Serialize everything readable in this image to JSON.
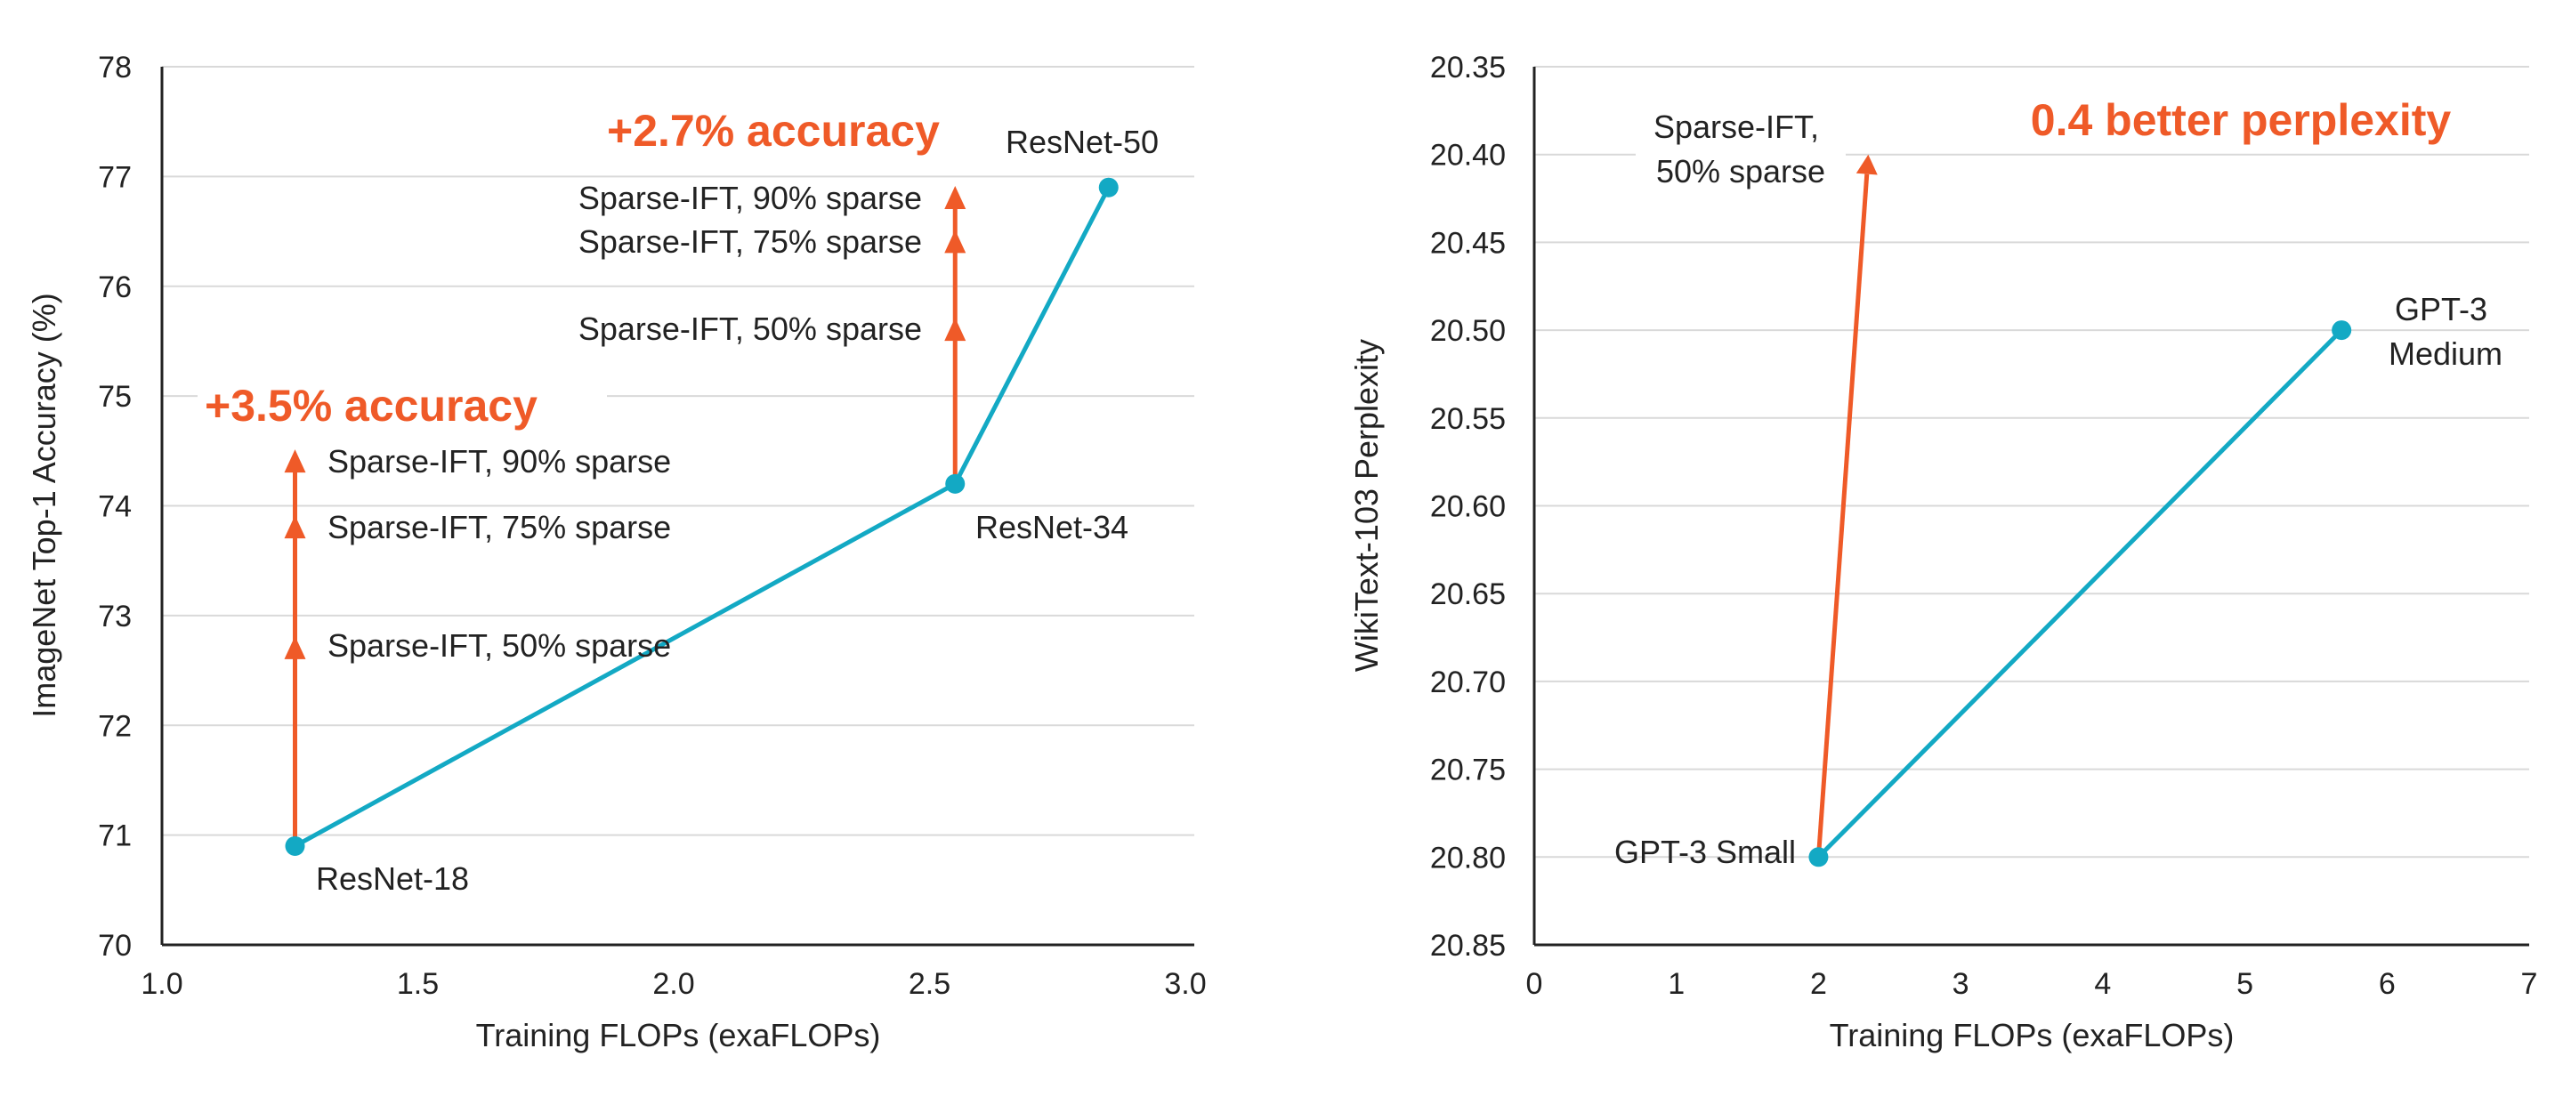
{
  "chart_data": [
    {
      "type": "line",
      "xlabel": "Training FLOPs (exaFLOPs)",
      "ylabel": "ImageNet Top-1 Accuracy (%)",
      "xlim": [
        1.0,
        3.0
      ],
      "ylim": [
        70,
        78
      ],
      "x_ticks": [
        "1.0",
        "1.5",
        "2.0",
        "2.5",
        "3.0"
      ],
      "y_ticks": [
        "70",
        "71",
        "72",
        "73",
        "74",
        "75",
        "76",
        "77",
        "78"
      ],
      "grid": "horizontal",
      "colors": {
        "baseline": "#13a9c4",
        "sparse": "#ef5a28",
        "highlight": "#ef5a28"
      },
      "series": [
        {
          "name": "",
          "points": [
            {
              "x": 1.26,
              "y": 70.9,
              "label": "ResNet-18"
            },
            {
              "x": 2.55,
              "y": 74.2,
              "label": "ResNet-34"
            },
            {
              "x": 2.85,
              "y": 76.9,
              "label": "ResNet-50"
            }
          ]
        }
      ],
      "arrows": [
        {
          "x": 1.26,
          "y_start": 70.9,
          "markers": [
            {
              "y": 72.7,
              "label": "Sparse-IFT, 50% sparse"
            },
            {
              "y": 73.8,
              "label": "Sparse-IFT, 75% sparse"
            },
            {
              "y": 74.4,
              "label": "Sparse-IFT, 90% sparse"
            }
          ],
          "annotation": "+3.5% accuracy"
        },
        {
          "x": 2.55,
          "y_start": 74.2,
          "markers": [
            {
              "y": 75.6,
              "label": "Sparse-IFT, 50% sparse"
            },
            {
              "y": 76.4,
              "label": "Sparse-IFT, 75% sparse"
            },
            {
              "y": 76.8,
              "label": "Sparse-IFT, 90% sparse"
            }
          ],
          "annotation": "+2.7% accuracy"
        }
      ]
    },
    {
      "type": "line",
      "xlabel": "Training FLOPs (exaFLOPs)",
      "ylabel": "WikiText-103 Perplexity",
      "xlim": [
        0,
        7
      ],
      "ylim": [
        20.85,
        20.35
      ],
      "y_inverted": true,
      "x_ticks": [
        "0",
        "1",
        "2",
        "3",
        "4",
        "5",
        "6",
        "7"
      ],
      "y_ticks": [
        "20.35",
        "20.40",
        "20.45",
        "20.50",
        "20.55",
        "20.60",
        "20.65",
        "20.70",
        "20.75",
        "20.80",
        "20.85"
      ],
      "grid": "horizontal",
      "colors": {
        "baseline": "#13a9c4",
        "sparse": "#ef5a28",
        "highlight": "#ef5a28"
      },
      "series": [
        {
          "name": "",
          "points": [
            {
              "x": 2.0,
              "y": 20.8,
              "label": "GPT-3 Small"
            },
            {
              "x": 5.68,
              "y": 20.5,
              "label": "GPT-3 Medium"
            }
          ]
        }
      ],
      "arrows": [
        {
          "x_start": 2.0,
          "y_start": 20.8,
          "x_end": 2.35,
          "y_end": 20.4,
          "label": "Sparse-IFT, 50% sparse"
        }
      ],
      "annotation": "0.4 better perplexity"
    }
  ]
}
